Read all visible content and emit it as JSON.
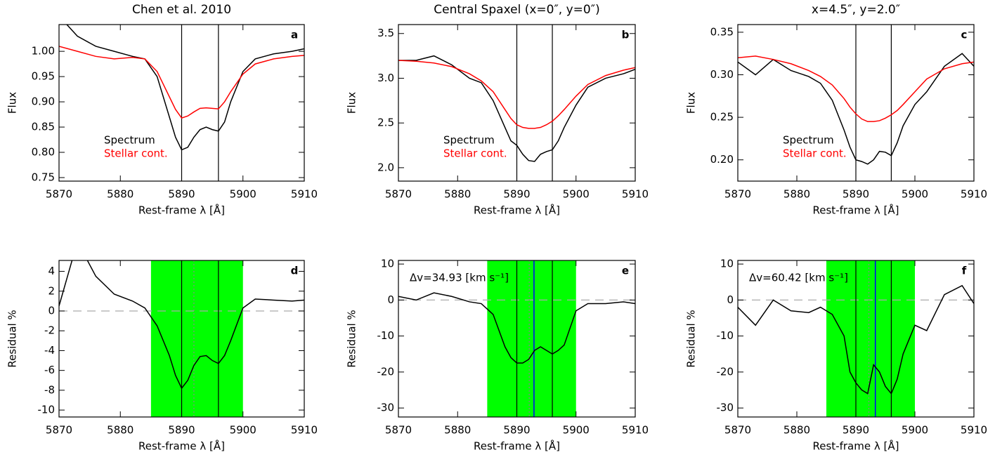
{
  "chart_data": [
    {
      "type": "line",
      "title": "Chen et al. 2010",
      "panel_label": "a",
      "xlabel": "Rest-frame λ [Å]",
      "ylabel": "Flux",
      "x": [
        5870,
        5873,
        5876,
        5879,
        5882,
        5884,
        5886,
        5888,
        5889,
        5890,
        5891,
        5892,
        5893,
        5894,
        5895,
        5896,
        5897,
        5898,
        5900,
        5902,
        5905,
        5908,
        5910
      ],
      "xlim": [
        5870,
        5910
      ],
      "xticks": [
        5870,
        5880,
        5890,
        5900,
        5910
      ],
      "ylim": [
        0.743,
        1.053
      ],
      "yticks": [
        0.75,
        {
          "value": 0.8,
          "label": "0.80"
        },
        0.85,
        {
          "value": 0.9,
          "label": "0.90"
        },
        0.95,
        {
          "value": 1.0,
          "label": "1.00"
        }
      ],
      "vlines": [
        5890,
        5896
      ],
      "vline_color": "#000000",
      "legend": "lower-left",
      "series": [
        {
          "name": "Spectrum",
          "color": "#000000",
          "values": [
            1.07,
            1.03,
            1.01,
            1.0,
            0.99,
            0.985,
            0.95,
            0.87,
            0.83,
            0.805,
            0.81,
            0.83,
            0.845,
            0.85,
            0.845,
            0.842,
            0.86,
            0.9,
            0.96,
            0.985,
            0.995,
            1.0,
            1.005
          ]
        },
        {
          "name": "Stellar cont.",
          "color": "#ff0000",
          "values": [
            1.01,
            1.0,
            0.99,
            0.985,
            0.988,
            0.985,
            0.96,
            0.91,
            0.885,
            0.868,
            0.872,
            0.88,
            0.887,
            0.888,
            0.887,
            0.886,
            0.9,
            0.92,
            0.955,
            0.975,
            0.985,
            0.99,
            0.992
          ]
        }
      ]
    },
    {
      "type": "line",
      "title": "Central Spaxel (x=0″, y=0″)",
      "panel_label": "b",
      "xlabel": "Rest-frame λ [Å]",
      "ylabel": "Flux",
      "x": [
        5870,
        5873,
        5876,
        5879,
        5882,
        5884,
        5886,
        5888,
        5889,
        5890,
        5891,
        5892,
        5893,
        5894,
        5895,
        5896,
        5897,
        5898,
        5900,
        5902,
        5905,
        5908,
        5910
      ],
      "xlim": [
        5870,
        5910
      ],
      "xticks": [
        5870,
        5880,
        5890,
        5900,
        5910
      ],
      "ylim": [
        1.85,
        3.6
      ],
      "yticks": [
        {
          "value": 2,
          "label": "2.0"
        },
        2.5,
        {
          "value": 3,
          "label": "3.0"
        },
        3.5
      ],
      "vlines": [
        5890,
        5896
      ],
      "vline_color": "#000000",
      "legend": "lower-left",
      "series": [
        {
          "name": "Spectrum",
          "color": "#000000",
          "values": [
            3.2,
            3.2,
            3.25,
            3.15,
            3.0,
            2.95,
            2.75,
            2.45,
            2.3,
            2.25,
            2.15,
            2.08,
            2.07,
            2.15,
            2.18,
            2.2,
            2.3,
            2.45,
            2.7,
            2.9,
            3.0,
            3.05,
            3.1
          ]
        },
        {
          "name": "Stellar cont.",
          "color": "#ff0000",
          "values": [
            3.2,
            3.19,
            3.17,
            3.13,
            3.05,
            2.97,
            2.85,
            2.65,
            2.55,
            2.48,
            2.45,
            2.44,
            2.44,
            2.45,
            2.48,
            2.52,
            2.58,
            2.65,
            2.8,
            2.93,
            3.03,
            3.09,
            3.12
          ]
        }
      ]
    },
    {
      "type": "line",
      "title": "x=4.5″, y=2.0″",
      "panel_label": "c",
      "xlabel": "Rest-frame λ [Å]",
      "ylabel": "Flux",
      "x": [
        5870,
        5873,
        5876,
        5879,
        5882,
        5884,
        5886,
        5888,
        5889,
        5890,
        5891,
        5892,
        5893,
        5894,
        5895,
        5896,
        5897,
        5898,
        5900,
        5902,
        5905,
        5908,
        5910
      ],
      "xlim": [
        5870,
        5910
      ],
      "xticks": [
        5870,
        5880,
        5890,
        5900,
        5910
      ],
      "ylim": [
        0.175,
        0.359
      ],
      "yticks": [
        {
          "value": 0.2,
          "label": "0.20"
        },
        0.25,
        {
          "value": 0.3,
          "label": "0.30"
        },
        0.35
      ],
      "vlines": [
        5890,
        5896
      ],
      "vline_color": "#000000",
      "legend": "lower-left",
      "series": [
        {
          "name": "Spectrum",
          "color": "#000000",
          "values": [
            0.315,
            0.3,
            0.318,
            0.305,
            0.298,
            0.29,
            0.27,
            0.235,
            0.215,
            0.2,
            0.198,
            0.195,
            0.2,
            0.21,
            0.209,
            0.205,
            0.22,
            0.24,
            0.265,
            0.28,
            0.31,
            0.325,
            0.31
          ]
        },
        {
          "name": "Stellar cont.",
          "color": "#ff0000",
          "values": [
            0.32,
            0.322,
            0.318,
            0.313,
            0.305,
            0.298,
            0.288,
            0.272,
            0.262,
            0.254,
            0.248,
            0.245,
            0.245,
            0.246,
            0.249,
            0.253,
            0.258,
            0.265,
            0.28,
            0.295,
            0.307,
            0.313,
            0.315
          ]
        }
      ]
    },
    {
      "type": "line",
      "panel_label": "d",
      "xlabel": "Rest-frame λ [Å]",
      "ylabel": "Residual %",
      "x": [
        5870,
        5873,
        5876,
        5879,
        5882,
        5884,
        5886,
        5888,
        5889,
        5890,
        5891,
        5892,
        5893,
        5894,
        5895,
        5896,
        5897,
        5898,
        5900,
        5902,
        5905,
        5908,
        5910
      ],
      "xlim": [
        5870,
        5910
      ],
      "xticks": [
        5870,
        5880,
        5890,
        5900,
        5910
      ],
      "ylim": [
        -10.7,
        5.1
      ],
      "yticks": [
        -10,
        -8,
        -6,
        -4,
        -2,
        0,
        2,
        4
      ],
      "band": [
        5885,
        5900
      ],
      "band_color": "#00ff00",
      "hline": 0,
      "center_line": 5892,
      "vlines": [
        5890,
        5896
      ],
      "vline_color": "#000000",
      "series": [
        {
          "color": "#000000",
          "values": [
            0.5,
            7,
            3.5,
            1.7,
            1.0,
            0.3,
            -1.5,
            -4.5,
            -6.5,
            -7.8,
            -7,
            -5.5,
            -4.6,
            -4.5,
            -5,
            -5.3,
            -4.5,
            -3,
            0.3,
            1.2,
            1.1,
            1,
            1.1
          ]
        }
      ]
    },
    {
      "type": "line",
      "panel_label": "e",
      "xlabel": "Rest-frame λ [Å]",
      "ylabel": "Residual %",
      "annotation": "Δv=34.93 [km s⁻¹]",
      "x": [
        5870,
        5873,
        5876,
        5879,
        5882,
        5884,
        5886,
        5888,
        5889,
        5890,
        5891,
        5892,
        5893,
        5894,
        5895,
        5896,
        5897,
        5898,
        5900,
        5902,
        5905,
        5908,
        5910
      ],
      "xlim": [
        5870,
        5910
      ],
      "xticks": [
        5870,
        5880,
        5890,
        5900,
        5910
      ],
      "ylim": [
        -32.5,
        11
      ],
      "yticks": [
        -30,
        -20,
        -10,
        0,
        10
      ],
      "band": [
        5885,
        5900
      ],
      "band_color": "#00ff00",
      "hline": 0,
      "center_line": 5892.1,
      "vlines": [
        5890,
        5896
      ],
      "vline_color": "#000000",
      "shift_line": 5892.9,
      "shift_color": "#0000ff",
      "series": [
        {
          "color": "#000000",
          "values": [
            1,
            0,
            2,
            1,
            -0.5,
            -1,
            -4,
            -13,
            -16,
            -17.5,
            -17.5,
            -16.5,
            -14,
            -13,
            -14,
            -15,
            -14,
            -12.5,
            -3,
            -1,
            -1,
            -0.5,
            -1
          ]
        }
      ]
    },
    {
      "type": "line",
      "panel_label": "f",
      "xlabel": "Rest-frame λ [Å]",
      "ylabel": "Residual %",
      "annotation": "Δv=60.42 [km s⁻¹]",
      "x": [
        5870,
        5873,
        5876,
        5879,
        5882,
        5884,
        5886,
        5888,
        5889,
        5890,
        5891,
        5892,
        5893,
        5894,
        5895,
        5896,
        5897,
        5898,
        5900,
        5902,
        5905,
        5908,
        5910
      ],
      "xlim": [
        5870,
        5910
      ],
      "xticks": [
        5870,
        5880,
        5890,
        5900,
        5910
      ],
      "ylim": [
        -32.5,
        11
      ],
      "yticks": [
        -30,
        -20,
        -10,
        0,
        10
      ],
      "band": [
        5885,
        5900
      ],
      "band_color": "#00ff00",
      "hline": 0,
      "center_line": 5892.2,
      "vlines": [
        5890,
        5896
      ],
      "vline_color": "#000000",
      "shift_line": 5893.3,
      "shift_color": "#0000ff",
      "series": [
        {
          "color": "#000000",
          "values": [
            -2,
            -7,
            0,
            -3,
            -3.5,
            -2,
            -4,
            -10,
            -20,
            -23,
            -25,
            -26,
            -18,
            -20,
            -24,
            -26,
            -22,
            -15,
            -7,
            -8.5,
            1.5,
            4,
            -1
          ]
        }
      ]
    }
  ]
}
